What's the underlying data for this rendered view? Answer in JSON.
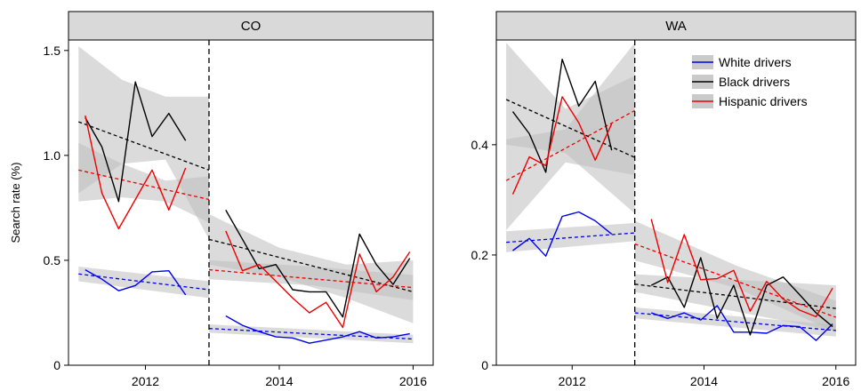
{
  "chart_data": [
    {
      "type": "line",
      "title": "CO",
      "ylabel": "Search rate (%)",
      "xlim": [
        2010.85,
        2016.3
      ],
      "ylim": [
        0,
        1.55
      ],
      "x_ticks": [
        2012,
        2014,
        2016
      ],
      "x_tick_labels": [
        "2012",
        "2014",
        "2016"
      ],
      "y_ticks": [
        0,
        0.5,
        1.0,
        1.5
      ],
      "y_tick_labels": [
        "0",
        "0.5",
        "1.0",
        "1.5"
      ],
      "policy_change_x": 2012.95,
      "series": [
        {
          "name": "White drivers",
          "color": "#0000ee",
          "x": [
            2011.1,
            2011.35,
            2011.6,
            2011.85,
            2012.1,
            2012.35,
            2012.6
          ],
          "y": [
            0.455,
            0.41,
            0.355,
            0.38,
            0.445,
            0.45,
            0.335
          ]
        },
        {
          "name": "Black drivers",
          "color": "#000000",
          "x": [
            2011.1,
            2011.35,
            2011.6,
            2011.85,
            2012.1,
            2012.35,
            2012.6
          ],
          "y": [
            1.18,
            1.04,
            0.78,
            1.35,
            1.09,
            1.2,
            1.07
          ]
        },
        {
          "name": "Hispanic drivers",
          "color": "#ee0000",
          "x": [
            2011.1,
            2011.35,
            2011.6,
            2011.85,
            2012.1,
            2012.35,
            2012.6
          ],
          "y": [
            1.19,
            0.82,
            0.65,
            0.79,
            0.93,
            0.74,
            0.94
          ]
        },
        {
          "name": "White drivers",
          "color": "#0000ee",
          "x": [
            2013.2,
            2013.45,
            2013.7,
            2013.95,
            2014.2,
            2014.45,
            2014.7,
            2014.95,
            2015.2,
            2015.45,
            2015.7,
            2015.95
          ],
          "y": [
            0.235,
            0.19,
            0.16,
            0.135,
            0.13,
            0.105,
            0.12,
            0.135,
            0.16,
            0.13,
            0.135,
            0.15
          ]
        },
        {
          "name": "Black drivers",
          "color": "#000000",
          "x": [
            2013.2,
            2013.45,
            2013.7,
            2013.95,
            2014.2,
            2014.45,
            2014.7,
            2014.95,
            2015.2,
            2015.45,
            2015.7,
            2015.95
          ],
          "y": [
            0.74,
            0.6,
            0.46,
            0.48,
            0.36,
            0.35,
            0.35,
            0.23,
            0.625,
            0.48,
            0.385,
            0.51
          ]
        },
        {
          "name": "Hispanic drivers",
          "color": "#ee0000",
          "x": [
            2013.2,
            2013.45,
            2013.7,
            2013.95,
            2014.2,
            2014.45,
            2014.7,
            2014.95,
            2015.2,
            2015.45,
            2015.7,
            2015.95
          ],
          "y": [
            0.64,
            0.45,
            0.48,
            0.4,
            0.32,
            0.25,
            0.3,
            0.18,
            0.53,
            0.35,
            0.42,
            0.54
          ]
        }
      ],
      "trend_lines": [
        {
          "name": "White drivers",
          "color": "#0000ee",
          "x": [
            2011.0,
            2012.95
          ],
          "y": [
            0.435,
            0.36
          ]
        },
        {
          "name": "Black drivers",
          "color": "#000000",
          "x": [
            2011.0,
            2012.95
          ],
          "y": [
            1.16,
            0.93
          ]
        },
        {
          "name": "Hispanic drivers",
          "color": "#ee0000",
          "x": [
            2011.0,
            2012.95
          ],
          "y": [
            0.93,
            0.79
          ]
        },
        {
          "name": "White drivers",
          "color": "#0000ee",
          "x": [
            2012.95,
            2016.0
          ],
          "y": [
            0.175,
            0.125
          ]
        },
        {
          "name": "Black drivers",
          "color": "#000000",
          "x": [
            2012.95,
            2016.0
          ],
          "y": [
            0.6,
            0.35
          ]
        },
        {
          "name": "Hispanic drivers",
          "color": "#ee0000",
          "x": [
            2012.95,
            2016.0
          ],
          "y": [
            0.455,
            0.37
          ]
        }
      ],
      "confidence_bands": [
        {
          "name": "White drivers",
          "x": [
            2011.0,
            2012.95
          ],
          "lower": [
            0.4,
            0.32
          ],
          "upper": [
            0.47,
            0.4
          ]
        },
        {
          "name": "Black drivers",
          "x": [
            2011.0,
            2011.65,
            2012.3,
            2012.95
          ],
          "lower": [
            0.82,
            0.96,
            0.98,
            0.6
          ],
          "upper": [
            1.52,
            1.36,
            1.28,
            1.28
          ]
        },
        {
          "name": "Hispanic drivers",
          "x": [
            2011.0,
            2011.65,
            2012.3,
            2012.95
          ],
          "lower": [
            0.78,
            0.8,
            0.78,
            0.68
          ],
          "upper": [
            1.06,
            0.96,
            0.88,
            0.9
          ]
        },
        {
          "name": "White drivers",
          "x": [
            2012.95,
            2016.0
          ],
          "lower": [
            0.155,
            0.105
          ],
          "upper": [
            0.195,
            0.145
          ]
        },
        {
          "name": "Black drivers",
          "x": [
            2012.95,
            2014.0,
            2015.0,
            2016.0
          ],
          "lower": [
            0.48,
            0.42,
            0.32,
            0.2
          ],
          "upper": [
            0.72,
            0.56,
            0.48,
            0.5
          ]
        },
        {
          "name": "Hispanic drivers",
          "x": [
            2012.95,
            2014.5,
            2016.0
          ],
          "lower": [
            0.41,
            0.38,
            0.31
          ],
          "upper": [
            0.5,
            0.47,
            0.43
          ]
        }
      ],
      "grid": false
    },
    {
      "type": "line",
      "title": "WA",
      "ylabel": "",
      "xlim": [
        2010.85,
        2016.3
      ],
      "ylim": [
        0,
        0.59
      ],
      "x_ticks": [
        2012,
        2014,
        2016
      ],
      "x_tick_labels": [
        "2012",
        "2014",
        "2016"
      ],
      "y_ticks": [
        0,
        0.2,
        0.4
      ],
      "y_tick_labels": [
        "0",
        "0.2",
        "0.4"
      ],
      "policy_change_x": 2012.95,
      "series": [
        {
          "name": "White drivers",
          "color": "#0000ee",
          "x": [
            2011.1,
            2011.35,
            2011.6,
            2011.85,
            2012.1,
            2012.35,
            2012.6
          ],
          "y": [
            0.208,
            0.23,
            0.198,
            0.27,
            0.278,
            0.262,
            0.238
          ]
        },
        {
          "name": "Black drivers",
          "color": "#000000",
          "x": [
            2011.1,
            2011.35,
            2011.6,
            2011.85,
            2012.1,
            2012.35,
            2012.6
          ],
          "y": [
            0.46,
            0.42,
            0.35,
            0.555,
            0.47,
            0.515,
            0.39
          ]
        },
        {
          "name": "Hispanic drivers",
          "color": "#ee0000",
          "x": [
            2011.1,
            2011.35,
            2011.6,
            2011.85,
            2012.1,
            2012.35,
            2012.6
          ],
          "y": [
            0.31,
            0.378,
            0.362,
            0.487,
            0.44,
            0.372,
            0.438
          ]
        },
        {
          "name": "White drivers",
          "color": "#0000ee",
          "x": [
            2013.2,
            2013.45,
            2013.7,
            2013.95,
            2014.2,
            2014.45,
            2014.7,
            2014.95,
            2015.2,
            2015.45,
            2015.7,
            2015.95
          ],
          "y": [
            0.095,
            0.085,
            0.095,
            0.082,
            0.108,
            0.06,
            0.06,
            0.058,
            0.072,
            0.07,
            0.045,
            0.075
          ]
        },
        {
          "name": "Black drivers",
          "color": "#000000",
          "x": [
            2013.2,
            2013.45,
            2013.7,
            2013.95,
            2014.2,
            2014.45,
            2014.7,
            2014.95,
            2015.2,
            2015.45,
            2015.7,
            2015.95
          ],
          "y": [
            0.145,
            0.16,
            0.105,
            0.195,
            0.085,
            0.145,
            0.055,
            0.145,
            0.16,
            0.128,
            0.095,
            0.07
          ]
        },
        {
          "name": "Hispanic drivers",
          "color": "#ee0000",
          "x": [
            2013.2,
            2013.45,
            2013.7,
            2013.95,
            2014.2,
            2014.45,
            2014.7,
            2014.95,
            2015.2,
            2015.45,
            2015.7,
            2015.95
          ],
          "y": [
            0.265,
            0.15,
            0.237,
            0.155,
            0.157,
            0.172,
            0.098,
            0.152,
            0.12,
            0.1,
            0.088,
            0.14
          ]
        }
      ],
      "trend_lines": [
        {
          "name": "White drivers",
          "color": "#0000ee",
          "x": [
            2011.0,
            2012.95
          ],
          "y": [
            0.223,
            0.24
          ]
        },
        {
          "name": "Black drivers",
          "color": "#000000",
          "x": [
            2011.0,
            2012.95
          ],
          "y": [
            0.482,
            0.377
          ]
        },
        {
          "name": "Hispanic drivers",
          "color": "#ee0000",
          "x": [
            2011.0,
            2012.95
          ],
          "y": [
            0.335,
            0.462
          ]
        },
        {
          "name": "White drivers",
          "color": "#0000ee",
          "x": [
            2012.95,
            2016.0
          ],
          "y": [
            0.095,
            0.063
          ]
        },
        {
          "name": "Black drivers",
          "color": "#000000",
          "x": [
            2012.95,
            2016.0
          ],
          "y": [
            0.147,
            0.103
          ]
        },
        {
          "name": "Hispanic drivers",
          "color": "#ee0000",
          "x": [
            2012.95,
            2016.0
          ],
          "y": [
            0.22,
            0.087
          ]
        }
      ],
      "confidence_bands": [
        {
          "name": "White drivers",
          "x": [
            2011.0,
            2012.95
          ],
          "lower": [
            0.205,
            0.225
          ],
          "upper": [
            0.243,
            0.258
          ]
        },
        {
          "name": "Black drivers",
          "x": [
            2011.0,
            2011.9,
            2012.95
          ],
          "lower": [
            0.4,
            0.385,
            0.275
          ],
          "upper": [
            0.585,
            0.465,
            0.525
          ]
        },
        {
          "name": "Hispanic drivers",
          "x": [
            2011.0,
            2011.9,
            2012.95
          ],
          "lower": [
            0.245,
            0.368,
            0.345
          ],
          "upper": [
            0.41,
            0.428,
            0.585
          ]
        },
        {
          "name": "White drivers",
          "x": [
            2012.95,
            2016.0
          ],
          "lower": [
            0.085,
            0.052
          ],
          "upper": [
            0.105,
            0.073
          ]
        },
        {
          "name": "Black drivers",
          "x": [
            2012.95,
            2016.0
          ],
          "lower": [
            0.133,
            0.062
          ],
          "upper": [
            0.165,
            0.145
          ]
        },
        {
          "name": "Hispanic drivers",
          "x": [
            2012.95,
            2014.5,
            2016.0
          ],
          "lower": [
            0.19,
            0.14,
            0.06
          ],
          "upper": [
            0.262,
            0.18,
            0.117
          ]
        }
      ],
      "legend": {
        "placement": "top-right",
        "entries": [
          {
            "label": "White drivers",
            "color": "#0000ee"
          },
          {
            "label": "Black drivers",
            "color": "#000000"
          },
          {
            "label": "Hispanic drivers",
            "color": "#ee0000"
          }
        ]
      },
      "grid": false
    }
  ],
  "style": {
    "strip_fill": "#d9d9d9",
    "band_fill": "#bdbdbd",
    "axis_color": "#000000"
  }
}
